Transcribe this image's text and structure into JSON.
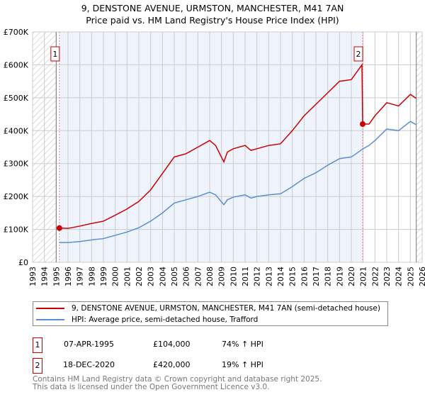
{
  "title": "9, DENSTONE AVENUE, URMSTON, MANCHESTER, M41 7AN",
  "subtitle": "Price paid vs. HM Land Registry's House Price Index (HPI)",
  "chart_data": {
    "type": "line",
    "title": "9, DENSTONE AVENUE, URMSTON, MANCHESTER, M41 7AN",
    "subtitle": "Price paid vs. HM Land Registry's House Price Index (HPI)",
    "xlim": [
      1993,
      2026
    ],
    "ylim": [
      0,
      700000
    ],
    "x_ticks": [
      "1993",
      "1994",
      "1995",
      "1996",
      "1997",
      "1998",
      "1999",
      "2000",
      "2001",
      "2002",
      "2003",
      "2004",
      "2005",
      "2006",
      "2007",
      "2008",
      "2009",
      "2010",
      "2011",
      "2012",
      "2013",
      "2014",
      "2015",
      "2016",
      "2017",
      "2018",
      "2019",
      "2020",
      "2021",
      "2022",
      "2023",
      "2024",
      "2025",
      "2026"
    ],
    "y_ticks": [
      {
        "v": 0,
        "l": "£0"
      },
      {
        "v": 100000,
        "l": "£100K"
      },
      {
        "v": 200000,
        "l": "£200K"
      },
      {
        "v": 300000,
        "l": "£300K"
      },
      {
        "v": 400000,
        "l": "£400K"
      },
      {
        "v": 500000,
        "l": "£500K"
      },
      {
        "v": 600000,
        "l": "£600K"
      },
      {
        "v": 700000,
        "l": "£700K"
      }
    ],
    "grid": true,
    "series": [
      {
        "name": "9, DENSTONE AVENUE, URMSTON, MANCHESTER, M41 7AN (semi-detached house)",
        "color": "#cc0000",
        "x": [
          1995.27,
          1996,
          1997,
          1998,
          1999,
          2000,
          2001,
          2002,
          2003,
          2004,
          2005,
          2006,
          2007,
          2008,
          2008.5,
          2009.2,
          2009.5,
          2010,
          2011,
          2011.5,
          2012,
          2013,
          2014,
          2015,
          2016,
          2017,
          2018,
          2019,
          2020,
          2020.9,
          2020.96,
          2021.5,
          2022,
          2023,
          2024,
          2025,
          2025.5
        ],
        "y": [
          104000,
          103000,
          110000,
          118000,
          125000,
          143000,
          162000,
          185000,
          220000,
          270000,
          320000,
          330000,
          350000,
          370000,
          355000,
          305000,
          335000,
          345000,
          355000,
          340000,
          345000,
          355000,
          360000,
          400000,
          445000,
          480000,
          515000,
          550000,
          555000,
          600000,
          420000,
          420000,
          445000,
          485000,
          475000,
          510000,
          498000
        ]
      },
      {
        "name": "HPI: Average price, semi-detached house, Trafford",
        "color": "#5b8fd0",
        "x": [
          1995.27,
          1996,
          1997,
          1998,
          1999,
          2000,
          2001,
          2002,
          2003,
          2004,
          2005,
          2006,
          2007,
          2008,
          2008.5,
          2009.2,
          2009.5,
          2010,
          2011,
          2011.5,
          2012,
          2013,
          2014,
          2015,
          2016,
          2017,
          2018,
          2019,
          2020,
          2021,
          2021.5,
          2022,
          2023,
          2024,
          2025,
          2025.5
        ],
        "y": [
          60000,
          60000,
          63000,
          68000,
          72000,
          82000,
          92000,
          105000,
          125000,
          150000,
          180000,
          190000,
          200000,
          213000,
          205000,
          175000,
          190000,
          198000,
          205000,
          195000,
          200000,
          205000,
          208000,
          230000,
          255000,
          272000,
          295000,
          315000,
          320000,
          345000,
          355000,
          370000,
          405000,
          400000,
          428000,
          418000
        ]
      }
    ],
    "annotations": [
      {
        "label": "1",
        "x": 1995.27,
        "y": 104000
      },
      {
        "label": "2",
        "x": 2020.96,
        "y": 420000
      }
    ],
    "hatched_before": 1995,
    "hatched_after": 2025.5
  },
  "legend": [
    "9, DENSTONE AVENUE, URMSTON, MANCHESTER, M41 7AN (semi-detached house)",
    "HPI: Average price, semi-detached house, Trafford"
  ],
  "sales": [
    {
      "n": "1",
      "date": "07-APR-1995",
      "price": "£104,000",
      "hpi": "74% ↑ HPI"
    },
    {
      "n": "2",
      "date": "18-DEC-2020",
      "price": "£420,000",
      "hpi": "19% ↑ HPI"
    }
  ],
  "footer": [
    "Contains HM Land Registry data © Crown copyright and database right 2025.",
    "This data is licensed under the Open Government Licence v3.0."
  ]
}
